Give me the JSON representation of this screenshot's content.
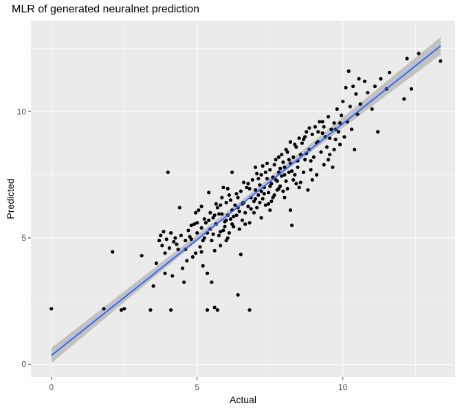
{
  "chart_data": {
    "type": "scatter",
    "title": "MLR of generated neuralnet prediction",
    "xlabel": "Actual",
    "ylabel": "Predicted",
    "xlim": [
      -0.7,
      13.85
    ],
    "ylim": [
      -0.5,
      13.6
    ],
    "x_ticks": [
      0,
      5,
      10
    ],
    "y_ticks": [
      0,
      5,
      10
    ],
    "grid": true,
    "background_color": "#EBEBEB",
    "grid_color": "#FFFFFF",
    "point_color": "#000000",
    "line_color": "#3366FF",
    "band_color": "#B3B3B3",
    "fit_line": {
      "x": [
        0,
        13.35
      ],
      "y": [
        0.35,
        12.6
      ]
    },
    "confidence_band": {
      "x": [
        0,
        6.7,
        13.35
      ],
      "lower": [
        0.05,
        6.5,
        12.25
      ],
      "upper": [
        0.65,
        6.65,
        12.95
      ]
    },
    "points": [
      {
        "x": 0.0,
        "y": 2.2
      },
      {
        "x": 1.8,
        "y": 2.2
      },
      {
        "x": 2.1,
        "y": 4.45
      },
      {
        "x": 2.4,
        "y": 2.15
      },
      {
        "x": 2.5,
        "y": 2.2
      },
      {
        "x": 3.1,
        "y": 4.3
      },
      {
        "x": 3.4,
        "y": 2.15
      },
      {
        "x": 3.5,
        "y": 3.1
      },
      {
        "x": 3.6,
        "y": 4.0
      },
      {
        "x": 3.7,
        "y": 4.9
      },
      {
        "x": 3.75,
        "y": 5.1
      },
      {
        "x": 3.8,
        "y": 4.7
      },
      {
        "x": 3.85,
        "y": 5.25
      },
      {
        "x": 3.9,
        "y": 3.6
      },
      {
        "x": 3.95,
        "y": 4.95
      },
      {
        "x": 4.0,
        "y": 7.6
      },
      {
        "x": 4.05,
        "y": 4.6
      },
      {
        "x": 4.1,
        "y": 2.15
      },
      {
        "x": 4.1,
        "y": 5.2
      },
      {
        "x": 4.15,
        "y": 3.5
      },
      {
        "x": 4.2,
        "y": 4.85
      },
      {
        "x": 4.25,
        "y": 5.0
      },
      {
        "x": 4.3,
        "y": 4.75
      },
      {
        "x": 4.4,
        "y": 6.2
      },
      {
        "x": 4.45,
        "y": 5.1
      },
      {
        "x": 4.5,
        "y": 3.8
      },
      {
        "x": 4.55,
        "y": 3.25
      },
      {
        "x": 4.6,
        "y": 4.9
      },
      {
        "x": 4.7,
        "y": 5.3
      },
      {
        "x": 4.75,
        "y": 5.05
      },
      {
        "x": 4.8,
        "y": 5.5
      },
      {
        "x": 4.85,
        "y": 4.25
      },
      {
        "x": 4.9,
        "y": 5.55
      },
      {
        "x": 4.95,
        "y": 4.4
      },
      {
        "x": 5.0,
        "y": 5.2
      },
      {
        "x": 5.05,
        "y": 6.1
      },
      {
        "x": 5.1,
        "y": 4.65
      },
      {
        "x": 5.15,
        "y": 5.4
      },
      {
        "x": 5.2,
        "y": 3.9
      },
      {
        "x": 5.25,
        "y": 5.0
      },
      {
        "x": 5.3,
        "y": 5.6
      },
      {
        "x": 5.35,
        "y": 3.6
      },
      {
        "x": 5.35,
        "y": 2.15
      },
      {
        "x": 5.4,
        "y": 6.8
      },
      {
        "x": 5.45,
        "y": 5.35
      },
      {
        "x": 5.5,
        "y": 3.25
      },
      {
        "x": 5.5,
        "y": 4.9
      },
      {
        "x": 5.55,
        "y": 5.8
      },
      {
        "x": 5.6,
        "y": 2.25
      },
      {
        "x": 5.6,
        "y": 4.5
      },
      {
        "x": 5.65,
        "y": 5.55
      },
      {
        "x": 5.7,
        "y": 6.2
      },
      {
        "x": 5.7,
        "y": 2.15
      },
      {
        "x": 5.75,
        "y": 5.1
      },
      {
        "x": 5.8,
        "y": 4.7
      },
      {
        "x": 5.85,
        "y": 5.95
      },
      {
        "x": 5.9,
        "y": 5.3
      },
      {
        "x": 5.9,
        "y": 7.0
      },
      {
        "x": 5.95,
        "y": 5.65
      },
      {
        "x": 6.0,
        "y": 4.9
      },
      {
        "x": 6.0,
        "y": 6.4
      },
      {
        "x": 6.05,
        "y": 5.9
      },
      {
        "x": 6.1,
        "y": 5.2
      },
      {
        "x": 6.1,
        "y": 6.7
      },
      {
        "x": 6.15,
        "y": 5.75
      },
      {
        "x": 6.2,
        "y": 6.1
      },
      {
        "x": 6.2,
        "y": 7.6
      },
      {
        "x": 6.25,
        "y": 5.45
      },
      {
        "x": 6.3,
        "y": 6.3
      },
      {
        "x": 6.35,
        "y": 5.9
      },
      {
        "x": 6.4,
        "y": 6.6
      },
      {
        "x": 6.4,
        "y": 2.75
      },
      {
        "x": 6.45,
        "y": 6.05
      },
      {
        "x": 6.5,
        "y": 4.35
      },
      {
        "x": 6.5,
        "y": 6.85
      },
      {
        "x": 6.55,
        "y": 5.7
      },
      {
        "x": 6.6,
        "y": 6.4
      },
      {
        "x": 6.65,
        "y": 6.0
      },
      {
        "x": 6.7,
        "y": 7.0
      },
      {
        "x": 6.75,
        "y": 6.25
      },
      {
        "x": 6.8,
        "y": 5.6
      },
      {
        "x": 6.8,
        "y": 2.15
      },
      {
        "x": 6.85,
        "y": 6.6
      },
      {
        "x": 6.9,
        "y": 7.3
      },
      {
        "x": 6.95,
        "y": 6.45
      },
      {
        "x": 7.0,
        "y": 6.9
      },
      {
        "x": 7.0,
        "y": 7.8
      },
      {
        "x": 7.05,
        "y": 6.2
      },
      {
        "x": 7.1,
        "y": 6.7
      },
      {
        "x": 7.15,
        "y": 7.1
      },
      {
        "x": 7.2,
        "y": 5.8
      },
      {
        "x": 7.2,
        "y": 7.5
      },
      {
        "x": 7.25,
        "y": 6.55
      },
      {
        "x": 7.3,
        "y": 7.0
      },
      {
        "x": 7.35,
        "y": 6.3
      },
      {
        "x": 7.4,
        "y": 7.35
      },
      {
        "x": 7.45,
        "y": 6.8
      },
      {
        "x": 7.5,
        "y": 7.7
      },
      {
        "x": 7.5,
        "y": 6.1
      },
      {
        "x": 7.55,
        "y": 7.15
      },
      {
        "x": 7.6,
        "y": 6.6
      },
      {
        "x": 7.65,
        "y": 7.9
      },
      {
        "x": 7.7,
        "y": 7.3
      },
      {
        "x": 7.75,
        "y": 6.9
      },
      {
        "x": 7.8,
        "y": 8.2
      },
      {
        "x": 7.8,
        "y": 7.6
      },
      {
        "x": 7.85,
        "y": 7.05
      },
      {
        "x": 7.9,
        "y": 7.45
      },
      {
        "x": 7.95,
        "y": 8.0
      },
      {
        "x": 8.0,
        "y": 6.6
      },
      {
        "x": 8.0,
        "y": 7.8
      },
      {
        "x": 8.05,
        "y": 7.25
      },
      {
        "x": 8.1,
        "y": 8.4
      },
      {
        "x": 8.15,
        "y": 7.6
      },
      {
        "x": 8.2,
        "y": 6.1
      },
      {
        "x": 8.2,
        "y": 7.95
      },
      {
        "x": 8.25,
        "y": 5.5
      },
      {
        "x": 8.3,
        "y": 8.2
      },
      {
        "x": 8.35,
        "y": 7.5
      },
      {
        "x": 8.4,
        "y": 8.6
      },
      {
        "x": 8.45,
        "y": 7.8
      },
      {
        "x": 8.5,
        "y": 7.0
      },
      {
        "x": 8.55,
        "y": 8.3
      },
      {
        "x": 8.6,
        "y": 8.75
      },
      {
        "x": 8.65,
        "y": 7.6
      },
      {
        "x": 8.7,
        "y": 8.1
      },
      {
        "x": 8.75,
        "y": 9.2
      },
      {
        "x": 8.8,
        "y": 6.9
      },
      {
        "x": 8.85,
        "y": 8.5
      },
      {
        "x": 8.9,
        "y": 7.7
      },
      {
        "x": 8.95,
        "y": 9.1
      },
      {
        "x": 9.0,
        "y": 8.2
      },
      {
        "x": 9.05,
        "y": 9.4
      },
      {
        "x": 9.1,
        "y": 7.5
      },
      {
        "x": 9.15,
        "y": 8.8
      },
      {
        "x": 9.2,
        "y": 9.6
      },
      {
        "x": 9.25,
        "y": 8.4
      },
      {
        "x": 9.3,
        "y": 9.15
      },
      {
        "x": 9.35,
        "y": 7.9
      },
      {
        "x": 9.4,
        "y": 9.0
      },
      {
        "x": 9.45,
        "y": 8.6
      },
      {
        "x": 9.5,
        "y": 9.8
      },
      {
        "x": 9.55,
        "y": 8.3
      },
      {
        "x": 9.6,
        "y": 9.3
      },
      {
        "x": 9.65,
        "y": 7.8
      },
      {
        "x": 9.7,
        "y": 9.55
      },
      {
        "x": 9.75,
        "y": 8.9
      },
      {
        "x": 9.8,
        "y": 10.1
      },
      {
        "x": 9.85,
        "y": 9.2
      },
      {
        "x": 9.9,
        "y": 8.7
      },
      {
        "x": 9.95,
        "y": 9.85
      },
      {
        "x": 10.0,
        "y": 10.4
      },
      {
        "x": 10.05,
        "y": 9.0
      },
      {
        "x": 10.1,
        "y": 10.95
      },
      {
        "x": 10.15,
        "y": 9.6
      },
      {
        "x": 10.2,
        "y": 11.6
      },
      {
        "x": 10.25,
        "y": 10.2
      },
      {
        "x": 10.3,
        "y": 9.3
      },
      {
        "x": 10.35,
        "y": 11.0
      },
      {
        "x": 10.4,
        "y": 8.5
      },
      {
        "x": 10.45,
        "y": 10.7
      },
      {
        "x": 10.5,
        "y": 9.9
      },
      {
        "x": 10.55,
        "y": 11.3
      },
      {
        "x": 10.6,
        "y": 10.3
      },
      {
        "x": 10.75,
        "y": 11.2
      },
      {
        "x": 10.85,
        "y": 10.75
      },
      {
        "x": 11.0,
        "y": 10.1
      },
      {
        "x": 11.1,
        "y": 11.0
      },
      {
        "x": 11.2,
        "y": 9.2
      },
      {
        "x": 11.3,
        "y": 11.3
      },
      {
        "x": 11.5,
        "y": 10.9
      },
      {
        "x": 11.6,
        "y": 11.55
      },
      {
        "x": 12.1,
        "y": 10.5
      },
      {
        "x": 12.2,
        "y": 12.1
      },
      {
        "x": 12.35,
        "y": 10.9
      },
      {
        "x": 12.6,
        "y": 12.3
      },
      {
        "x": 13.35,
        "y": 12.0
      },
      {
        "x": 3.9,
        "y": 4.4
      },
      {
        "x": 4.35,
        "y": 4.55
      },
      {
        "x": 4.65,
        "y": 4.1
      },
      {
        "x": 5.15,
        "y": 4.45
      },
      {
        "x": 5.75,
        "y": 5.95
      },
      {
        "x": 5.95,
        "y": 5.45
      },
      {
        "x": 6.15,
        "y": 6.5
      },
      {
        "x": 6.35,
        "y": 6.75
      },
      {
        "x": 6.55,
        "y": 6.35
      },
      {
        "x": 6.75,
        "y": 7.15
      },
      {
        "x": 6.95,
        "y": 6.0
      },
      {
        "x": 7.15,
        "y": 6.4
      },
      {
        "x": 7.35,
        "y": 7.6
      },
      {
        "x": 7.55,
        "y": 6.45
      },
      {
        "x": 7.75,
        "y": 7.25
      },
      {
        "x": 7.95,
        "y": 6.85
      },
      {
        "x": 8.15,
        "y": 8.1
      },
      {
        "x": 8.35,
        "y": 8.7
      },
      {
        "x": 8.55,
        "y": 7.2
      },
      {
        "x": 8.75,
        "y": 8.35
      },
      {
        "x": 8.95,
        "y": 7.3
      },
      {
        "x": 9.15,
        "y": 9.2
      },
      {
        "x": 9.35,
        "y": 9.4
      },
      {
        "x": 9.55,
        "y": 8.95
      },
      {
        "x": 9.75,
        "y": 9.3
      },
      {
        "x": 6.05,
        "y": 5.0
      },
      {
        "x": 6.25,
        "y": 5.85
      },
      {
        "x": 6.45,
        "y": 5.35
      },
      {
        "x": 6.65,
        "y": 5.55
      },
      {
        "x": 6.85,
        "y": 6.15
      },
      {
        "x": 7.05,
        "y": 7.55
      },
      {
        "x": 7.25,
        "y": 7.85
      },
      {
        "x": 7.45,
        "y": 6.35
      },
      {
        "x": 7.65,
        "y": 6.7
      },
      {
        "x": 7.85,
        "y": 7.75
      },
      {
        "x": 8.05,
        "y": 8.5
      },
      {
        "x": 8.25,
        "y": 7.65
      },
      {
        "x": 8.45,
        "y": 8.05
      },
      {
        "x": 8.65,
        "y": 8.9
      },
      {
        "x": 8.85,
        "y": 9.35
      },
      {
        "x": 5.25,
        "y": 5.75
      },
      {
        "x": 5.45,
        "y": 6.0
      },
      {
        "x": 5.65,
        "y": 6.35
      },
      {
        "x": 5.85,
        "y": 6.6
      },
      {
        "x": 6.05,
        "y": 6.95
      },
      {
        "x": 4.95,
        "y": 6.0
      },
      {
        "x": 5.15,
        "y": 6.25
      },
      {
        "x": 5.35,
        "y": 5.2
      },
      {
        "x": 5.55,
        "y": 5.15
      },
      {
        "x": 5.8,
        "y": 5.25
      },
      {
        "x": 7.1,
        "y": 7.35
      },
      {
        "x": 7.3,
        "y": 6.75
      },
      {
        "x": 7.5,
        "y": 7.05
      },
      {
        "x": 7.7,
        "y": 8.1
      },
      {
        "x": 7.9,
        "y": 8.3
      },
      {
        "x": 8.1,
        "y": 6.95
      },
      {
        "x": 8.3,
        "y": 7.3
      },
      {
        "x": 8.5,
        "y": 8.95
      },
      {
        "x": 8.7,
        "y": 9.0
      },
      {
        "x": 8.9,
        "y": 8.05
      },
      {
        "x": 9.1,
        "y": 8.75
      },
      {
        "x": 9.3,
        "y": 9.6
      },
      {
        "x": 9.5,
        "y": 8.1
      },
      {
        "x": 9.7,
        "y": 8.5
      },
      {
        "x": 9.9,
        "y": 9.55
      },
      {
        "x": 6.6,
        "y": 7.2
      },
      {
        "x": 6.8,
        "y": 6.95
      },
      {
        "x": 7.0,
        "y": 6.55
      },
      {
        "x": 7.2,
        "y": 6.85
      },
      {
        "x": 7.4,
        "y": 7.95
      },
      {
        "x": 7.6,
        "y": 7.4
      },
      {
        "x": 7.8,
        "y": 6.95
      },
      {
        "x": 8.0,
        "y": 7.5
      },
      {
        "x": 8.2,
        "y": 8.8
      },
      {
        "x": 8.4,
        "y": 7.15
      },
      {
        "x": 4.6,
        "y": 4.55
      },
      {
        "x": 4.8,
        "y": 4.95
      },
      {
        "x": 5.0,
        "y": 5.6
      },
      {
        "x": 5.2,
        "y": 4.9
      },
      {
        "x": 5.4,
        "y": 5.7
      },
      {
        "x": 5.6,
        "y": 5.9
      },
      {
        "x": 5.8,
        "y": 6.3
      },
      {
        "x": 6.0,
        "y": 5.7
      },
      {
        "x": 6.2,
        "y": 5.55
      },
      {
        "x": 6.4,
        "y": 6.2
      }
    ]
  }
}
